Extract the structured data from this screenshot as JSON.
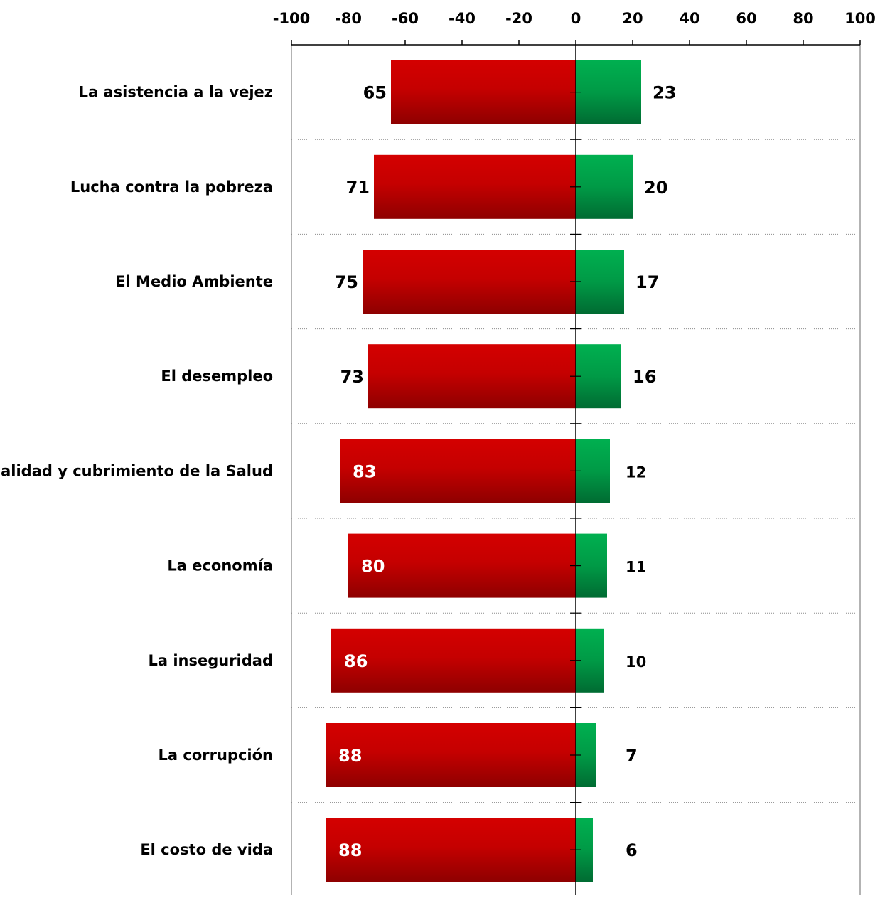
{
  "chart_data": {
    "type": "bar",
    "orientation": "horizontal-diverging",
    "xlim": [
      -100,
      100
    ],
    "x_ticks": [
      -100,
      -80,
      -60,
      -40,
      -20,
      0,
      20,
      40,
      60,
      80,
      100
    ],
    "x_tick_labels": [
      "-100",
      "-80",
      "-60",
      "-40",
      "-20",
      "0",
      "20",
      "40",
      "60",
      "80",
      "100"
    ],
    "x_axis_position": "top",
    "grid": "horizontal dotted separators",
    "categories": [
      "La asistencia a la vejez",
      "Lucha contra la pobreza",
      "El Medio Ambiente",
      "El desempleo",
      "Calidad y cubrimiento de la Salud",
      "La economía",
      "La inseguridad",
      "La corrupción",
      "El costo de vida"
    ],
    "series": [
      {
        "color": "#c00000",
        "values": [
          -65,
          -71,
          -75,
          -73,
          -83,
          -80,
          -86,
          -88,
          -88
        ],
        "labels": [
          "65",
          "71",
          "75",
          "73",
          "83",
          "80",
          "86",
          "88",
          "88"
        ]
      },
      {
        "color": "#00a84f",
        "values": [
          23,
          20,
          17,
          16,
          12,
          11,
          10,
          7,
          6
        ],
        "labels": [
          "23",
          "20",
          "17",
          "16",
          "12",
          "11",
          "10",
          "7",
          "6"
        ]
      }
    ]
  }
}
